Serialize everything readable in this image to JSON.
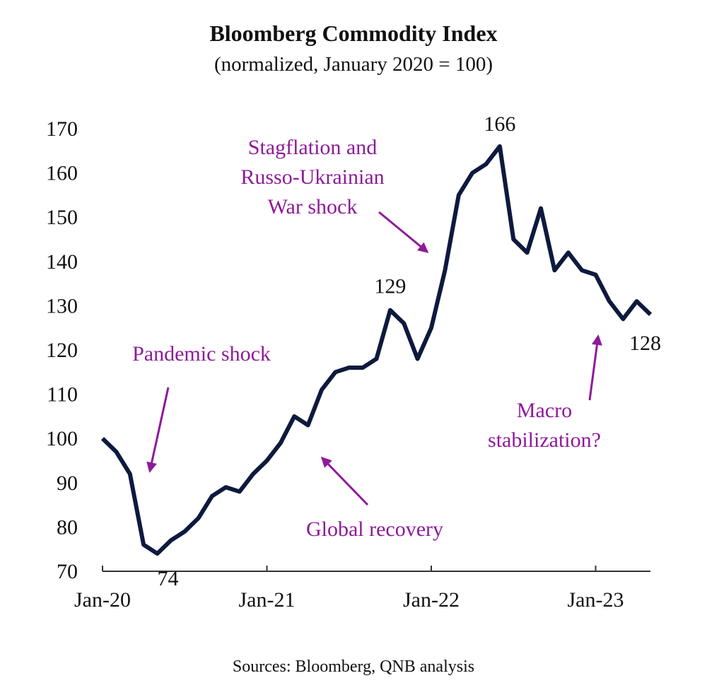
{
  "chart_data": {
    "type": "line",
    "title": "Bloomberg Commodity Index",
    "subtitle": "(normalized, January 2020 = 100)",
    "source": "Sources: Bloomberg, QNB analysis",
    "x": [
      "2020-01",
      "2020-02",
      "2020-03",
      "2020-04",
      "2020-05",
      "2020-06",
      "2020-07",
      "2020-08",
      "2020-09",
      "2020-10",
      "2020-11",
      "2020-12",
      "2021-01",
      "2021-02",
      "2021-03",
      "2021-04",
      "2021-05",
      "2021-06",
      "2021-07",
      "2021-08",
      "2021-09",
      "2021-10",
      "2021-11",
      "2021-12",
      "2022-01",
      "2022-02",
      "2022-03",
      "2022-04",
      "2022-05",
      "2022-06",
      "2022-07",
      "2022-08",
      "2022-09",
      "2022-10",
      "2022-11",
      "2022-12",
      "2023-01",
      "2023-02",
      "2023-03",
      "2023-04",
      "2023-05"
    ],
    "series": [
      {
        "name": "Bloomberg Commodity Index",
        "color": "#0d1a3d",
        "values": [
          100,
          97,
          92,
          76,
          74,
          77,
          79,
          82,
          87,
          89,
          88,
          92,
          95,
          99,
          105,
          103,
          111,
          115,
          116,
          116,
          118,
          129,
          126,
          118,
          125,
          138,
          155,
          160,
          162,
          166,
          145,
          142,
          152,
          138,
          142,
          138,
          137,
          131,
          127,
          131,
          128
        ]
      }
    ],
    "xlim": [
      "2020-01",
      "2023-05"
    ],
    "xticks": [
      {
        "value": "2020-01",
        "label": "Jan-20"
      },
      {
        "value": "2021-01",
        "label": "Jan-21"
      },
      {
        "value": "2022-01",
        "label": "Jan-22"
      },
      {
        "value": "2023-01",
        "label": "Jan-23"
      }
    ],
    "ylim": [
      70,
      170
    ],
    "yticks": [
      70,
      80,
      90,
      100,
      110,
      120,
      130,
      140,
      150,
      160,
      170
    ],
    "grid": false,
    "labeled_points": [
      4,
      21,
      29,
      40
    ],
    "annotations": [
      {
        "lines": [
          "Pandemic shock"
        ]
      },
      {
        "lines": [
          "Global recovery"
        ]
      },
      {
        "lines": [
          "Stagflation and",
          "Russo-Ukrainian",
          "War shock"
        ]
      },
      {
        "lines": [
          "Macro",
          "stabilization?"
        ]
      }
    ]
  }
}
